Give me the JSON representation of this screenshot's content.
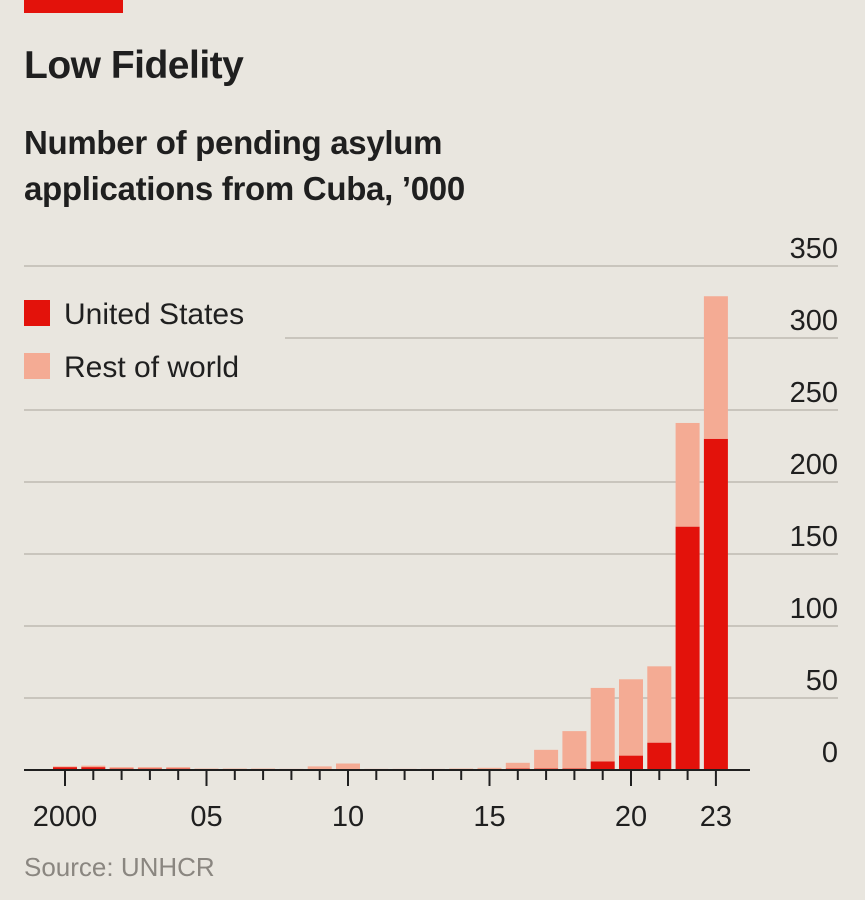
{
  "header": {
    "title": "Low Fidelity",
    "subtitle": "Number of pending asylum applications from Cuba, ’000"
  },
  "source": "Source: UNHCR",
  "colors": {
    "brand": "#e3120b",
    "us": "#e3120b",
    "rest": "#f4ab94",
    "grid": "#c9c5bd",
    "axis": "#1f1f1f",
    "background": "#e9e6df"
  },
  "chart_data": {
    "type": "bar",
    "stacked": true,
    "title": "Low Fidelity",
    "subtitle": "Number of pending asylum applications from Cuba, ’000",
    "xlabel": "",
    "ylabel": "",
    "ylim": [
      0,
      350
    ],
    "yticks": [
      0,
      50,
      100,
      150,
      200,
      250,
      300,
      350
    ],
    "categories": [
      2000,
      2001,
      2002,
      2003,
      2004,
      2005,
      2006,
      2007,
      2008,
      2009,
      2010,
      2011,
      2012,
      2013,
      2014,
      2015,
      2016,
      2017,
      2018,
      2019,
      2020,
      2021,
      2022,
      2023
    ],
    "xtick_labels": [
      {
        "year": 2000,
        "label": "2000"
      },
      {
        "year": 2005,
        "label": "05"
      },
      {
        "year": 2010,
        "label": "10"
      },
      {
        "year": 2015,
        "label": "15"
      },
      {
        "year": 2020,
        "label": "20"
      },
      {
        "year": 2023,
        "label": "23"
      }
    ],
    "series": [
      {
        "name": "United States",
        "color": "#e3120b",
        "values": [
          2,
          2,
          1,
          1,
          1,
          0.5,
          0.5,
          0.5,
          0.3,
          0.5,
          0.5,
          0.3,
          0.3,
          0.3,
          0.5,
          0.5,
          1,
          1,
          1,
          6,
          10,
          19,
          169,
          230
        ]
      },
      {
        "name": "Rest of world",
        "color": "#f4ab94",
        "values": [
          0.5,
          1,
          1,
          1,
          1,
          0.5,
          0.5,
          0.5,
          0.5,
          2,
          4,
          0.5,
          0.5,
          0.5,
          0.5,
          1,
          4,
          13,
          26,
          51,
          53,
          53,
          72,
          99
        ]
      }
    ],
    "legend": [
      "United States",
      "Rest of world"
    ],
    "legend_position": "top-left",
    "grid": true
  }
}
